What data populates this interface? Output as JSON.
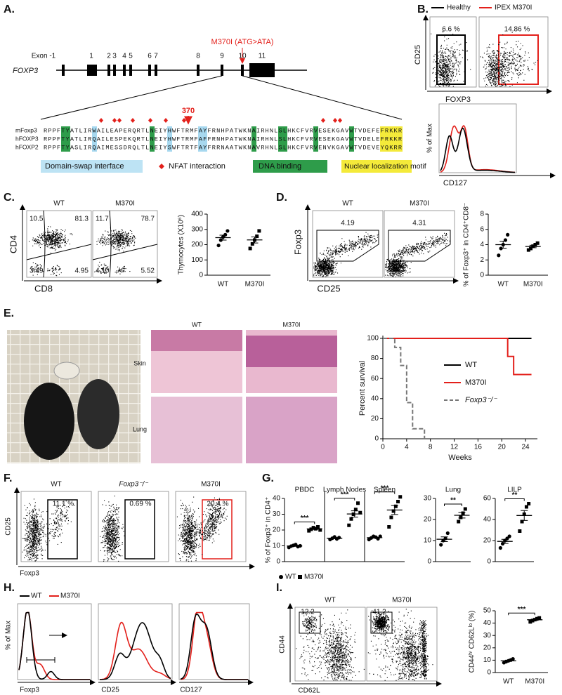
{
  "a": {
    "label": "A.",
    "mutation": "M370I (ATG>ATA)",
    "gene": "FOXP3",
    "exons": [
      "Exon -1",
      "1",
      "2",
      "3",
      "4",
      "5",
      "6",
      "7",
      "8",
      "9",
      "10",
      "11"
    ],
    "residue": "370",
    "sequences": [
      {
        "name": "mFoxp3",
        "seq": "RPPFTYATLIRWAILEAPERQRTLNEIYHWFTRMFAYFRNHPATWKNAIRHNLSLHKCFVRVESEKGAVWTVDEFEFRKKR"
      },
      {
        "name": "hFOXP3",
        "seq": "RPPFTYATLIRQAILESPEKQRTLNEIYHWFTRMFAFFRNHPATWKNAIRHNLSLHKCFVRVESEKGAVWTVDELEFRKKR"
      },
      {
        "name": "hFOXP2",
        "seq": "RPPFTYASLIRQAIMESSDRQLTLNEIYSWFTRTFAYFRRNAATWKNAVRHNLSLHKCFVRVENVKGAVWTVDEVEYQKRR"
      }
    ],
    "legend": {
      "domain_swap": "Domain-swap interface",
      "nfat": "NFAT interaction",
      "dna": "DNA binding",
      "nls": "Nuclear localization motif"
    }
  },
  "b": {
    "label": "B.",
    "legend": [
      {
        "name": "Healthy",
        "color": "#000000"
      },
      {
        "name": "IPEX M370I",
        "color": "#e3201b"
      }
    ],
    "gates": [
      "6.6 %",
      "14.86 %"
    ],
    "x_axis": "FOXP3",
    "y_axis": "CD25",
    "hist_x_axis": "CD127",
    "hist_y_axis": "% of Max"
  },
  "c": {
    "label": "C.",
    "conditions": [
      "WT",
      "M370I"
    ],
    "quadrants": [
      [
        "10.5",
        "81.3",
        "3.49",
        "4.95"
      ],
      [
        "11.7",
        "78.7",
        "4.10",
        "5.52"
      ]
    ],
    "x_axis": "CD8",
    "y_axis": "CD4",
    "dotplot": {
      "ylabel": "Thymocytes (X10⁶)",
      "categories": [
        "WT",
        "M370I"
      ],
      "ylim": [
        0,
        400
      ],
      "yticks": [
        0,
        100,
        200,
        300,
        400
      ],
      "values": [
        [
          195,
          230,
          250,
          265,
          290
        ],
        [
          175,
          205,
          230,
          255,
          290
        ]
      ]
    }
  },
  "d": {
    "label": "D.",
    "conditions": [
      "WT",
      "M370I"
    ],
    "gates": [
      "4.19",
      "4.31"
    ],
    "x_axis": "CD25",
    "y_axis": "Foxp3",
    "dotplot": {
      "ylabel": "% of Foxp3⁺ in CD4⁺CD8⁻",
      "categories": [
        "WT",
        "M370I"
      ],
      "ylim": [
        0,
        8
      ],
      "yticks": [
        0,
        2,
        4,
        6,
        8
      ],
      "values": [
        [
          2.6,
          3.5,
          4.0,
          4.6,
          5.3
        ],
        [
          3.3,
          3.5,
          3.8,
          4.0,
          4.2
        ]
      ]
    }
  },
  "e": {
    "label": "E.",
    "conditions": [
      "WT",
      "M370I"
    ],
    "tissues": [
      "Skin",
      "Lung"
    ],
    "survival": {
      "ylabel": "Percent survival",
      "xlabel": "Weeks",
      "xlim": [
        0,
        26
      ],
      "xticks": [
        0,
        4,
        8,
        12,
        16,
        20,
        24
      ],
      "ylim": [
        0,
        100
      ],
      "yticks": [
        0,
        20,
        40,
        60,
        80,
        100
      ],
      "series": [
        {
          "name": "WT",
          "color": "#000000",
          "dashed": false,
          "x": [
            0,
            25
          ],
          "y": [
            100,
            100
          ]
        },
        {
          "name": "M370I",
          "color": "#e3201b",
          "dashed": false,
          "x": [
            0,
            21,
            22,
            25
          ],
          "y": [
            100,
            82,
            64,
            64
          ]
        },
        {
          "name": "Foxp3⁻/⁻",
          "color": "#777777",
          "dashed": true,
          "x": [
            0,
            2,
            3,
            4,
            5,
            6,
            7
          ],
          "y": [
            100,
            91,
            73,
            36,
            10,
            10,
            0
          ]
        }
      ]
    }
  },
  "f": {
    "label": "F.",
    "conditions": [
      "WT",
      "Foxp3⁻/⁻",
      "M370I"
    ],
    "gates": [
      "11.1 %",
      "0.69 %",
      "20.4 %"
    ],
    "x_axis": "Foxp3",
    "y_axis": "CD25"
  },
  "g": {
    "label": "G.",
    "ylabel": "% of Foxp3⁺ in CD4⁺",
    "legend": [
      "WT",
      "M370I"
    ],
    "ylim": [
      0,
      40
    ],
    "yticks": [
      0,
      10,
      20,
      30,
      40
    ],
    "panels": [
      {
        "title": "PBDC",
        "sig": "***",
        "values": [
          [
            9,
            9.8,
            10.3,
            10.8,
            9.5,
            10
          ],
          [
            19.5,
            20.5,
            21.5,
            20.8,
            22,
            20
          ]
        ]
      },
      {
        "title": "Lymph Nodes",
        "sig": "***",
        "values": [
          [
            14,
            14.8,
            15.6,
            14.4,
            15.2
          ],
          [
            23,
            27,
            30,
            33,
            37,
            31
          ]
        ]
      },
      {
        "title": "Spleen",
        "sig": "***",
        "values": [
          [
            14,
            15,
            16,
            15.5,
            14.5,
            16
          ],
          [
            22,
            28,
            32,
            35,
            38,
            41
          ]
        ]
      },
      {
        "title": "Lung",
        "sig": "**",
        "ylim": [
          0,
          30
        ],
        "yticks": [
          0,
          10,
          20,
          30
        ],
        "values": [
          [
            8,
            10,
            11,
            13.5
          ],
          [
            19,
            21,
            23,
            25
          ]
        ]
      },
      {
        "title": "LILP",
        "sig": "**",
        "ylim": [
          0,
          60
        ],
        "yticks": [
          0,
          20,
          40,
          60
        ],
        "values": [
          [
            13,
            17,
            20,
            22,
            24
          ],
          [
            29,
            38,
            45,
            52,
            55
          ]
        ]
      }
    ]
  },
  "h": {
    "label": "H.",
    "legend": [
      {
        "name": "WT",
        "color": "#000000"
      },
      {
        "name": "M370I",
        "color": "#e3201b"
      }
    ],
    "ylabel": "% of Max",
    "x_axes": [
      "Foxp3",
      "CD25",
      "CD127"
    ]
  },
  "i": {
    "label": "I.",
    "conditions": [
      "WT",
      "M370I"
    ],
    "gates": [
      "12.2",
      "41.2"
    ],
    "x_axis": "CD62L",
    "y_axis": "CD44",
    "dotplot": {
      "ylabel": "CD44ʰⁱ CD62Lˡᵒ (%)",
      "categories": [
        "WT",
        "M370I"
      ],
      "ylim": [
        0,
        50
      ],
      "yticks": [
        0,
        10,
        20,
        30,
        40,
        50
      ],
      "sig": "***",
      "values": [
        [
          8,
          8.8,
          9.5,
          10.2,
          11
        ],
        [
          41,
          42,
          42.8,
          43.6,
          44.2
        ]
      ]
    }
  }
}
